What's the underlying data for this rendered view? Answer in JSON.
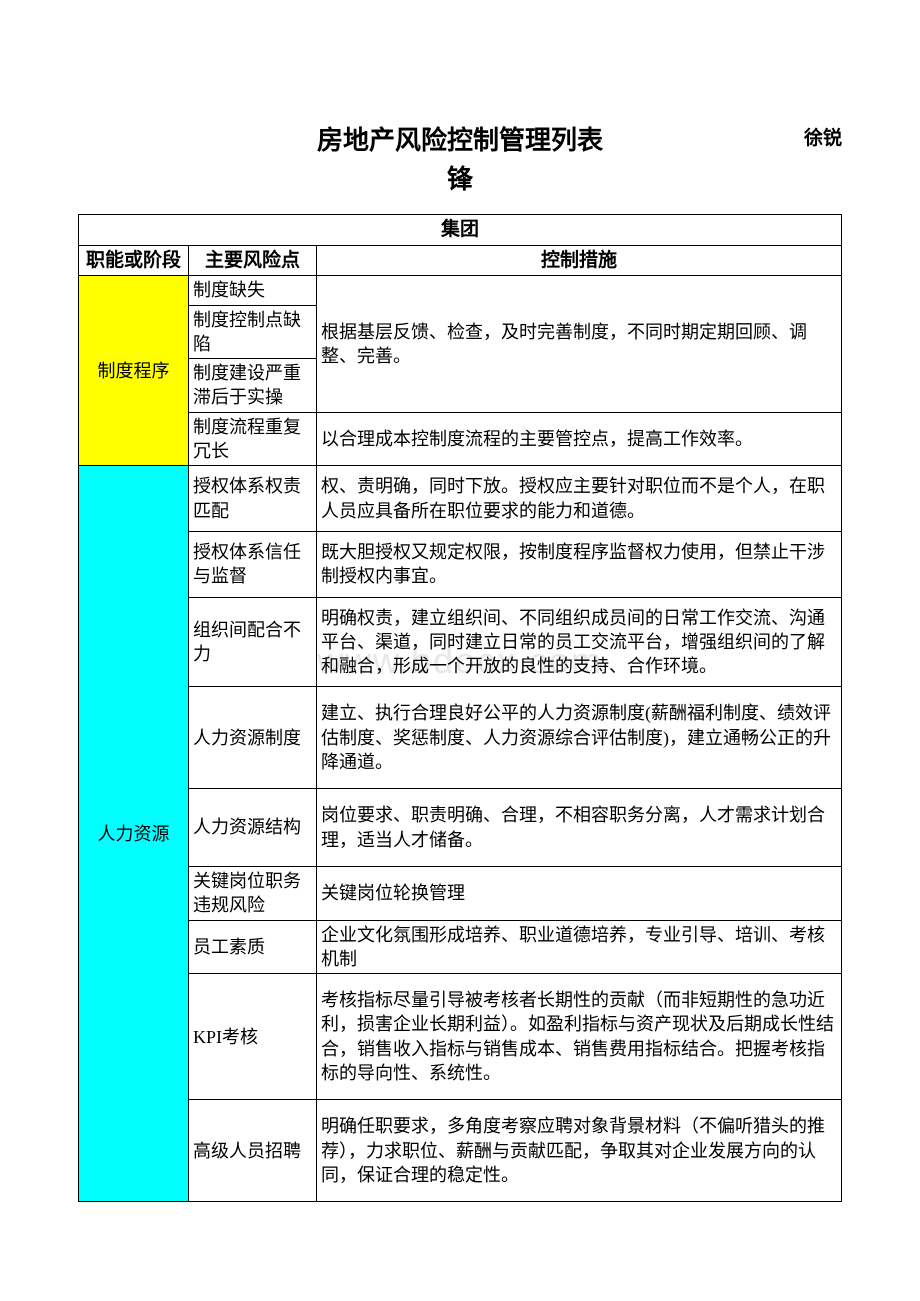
{
  "title": "房地产风险控制管理列表",
  "author": "徐锐",
  "subtitle": "锋",
  "tableHeader": "集团",
  "columns": {
    "col1": "职能或阶段",
    "col2": "主要风险点",
    "col3": "控制措施"
  },
  "section1": {
    "label": "制度程序",
    "risk1": "制度缺失",
    "risk2": "制度控制点缺陷",
    "risk3": "制度建设严重滞后于实操",
    "risk4": "制度流程重复冗长",
    "measure1": "根据基层反馈、检查，及时完善制度，不同时期定期回顾、调整、完善。",
    "measure2": "以合理成本控制度流程的主要管控点，提高工作效率。"
  },
  "section2": {
    "label": "人力资源",
    "rows": [
      {
        "risk": "授权体系权责匹配",
        "measure": "权、责明确，同时下放。授权应主要针对职位而不是个人，在职人员应具备所在职位要求的能力和道德。"
      },
      {
        "risk": "授权体系信任与监督",
        "measure": "既大胆授权又规定权限，按制度程序监督权力使用，但禁止干涉制授权内事宜。"
      },
      {
        "risk": "组织间配合不力",
        "measure": "明确权责，建立组织间、不同组织成员间的日常工作交流、沟通平台、渠道，同时建立日常的员工交流平台，增强组织间的了解和融合，形成一个开放的良性的支持、合作环境。"
      },
      {
        "risk": "人力资源制度",
        "measure": "建立、执行合理良好公平的人力资源制度(薪酬福利制度、绩效评估制度、奖惩制度、人力资源综合评估制度)，建立通畅公正的升降通道。"
      },
      {
        "risk": "人力资源结构",
        "measure": "岗位要求、职责明确、合理，不相容职务分离，人才需求计划合理，适当人才储备。"
      },
      {
        "risk": "关键岗位职务违规风险",
        "measure": "关键岗位轮换管理"
      },
      {
        "risk": "员工素质",
        "measure": "企业文化氛围形成培养、职业道德培养，专业引导、培训、考核机制"
      },
      {
        "risk": "KPI考核",
        "measure": "考核指标尽量引导被考核者长期性的贡献（而非短期性的急功近利，损害企业长期利益）。如盈利指标与资产现状及后期成长性结合，销售收入指标与销售成本、销售费用指标结合。把握考核指标的导向性、系统性。"
      },
      {
        "risk": "高级人员招聘",
        "measure": "明确任职要求，多角度考察应聘对象背景材料（不偏听猎头的推荐），力求职位、薪酬与贡献匹配，争取其对企业发展方向的认同，保证合理的稳定性。"
      }
    ]
  },
  "watermark": "www.bdocx.com",
  "colors": {
    "yellow": "#ffff00",
    "cyan": "#00ffff",
    "border": "#000000",
    "background": "#ffffff",
    "watermark": "#e8e8e8"
  }
}
